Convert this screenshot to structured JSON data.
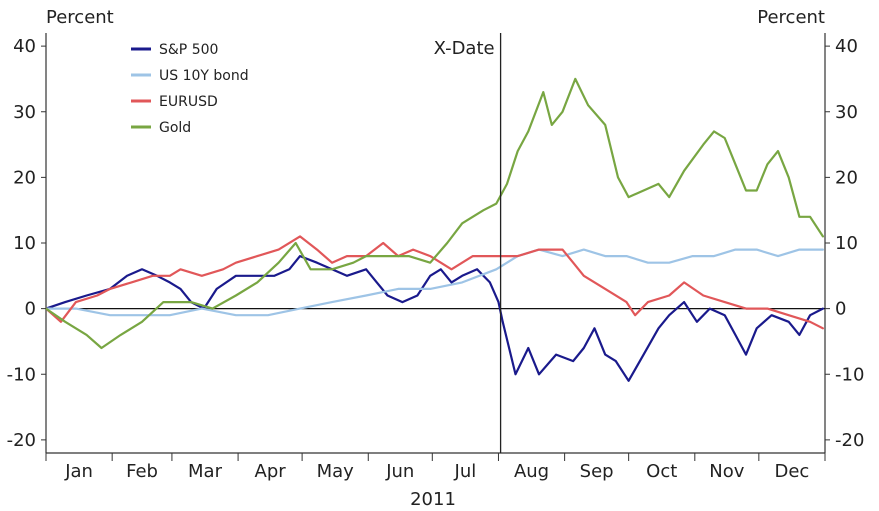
{
  "chart_data": {
    "type": "line",
    "ylabel_left": "Percent",
    "ylabel_right": "Percent",
    "ylim": [
      -22,
      42
    ],
    "yticks": [
      -20,
      -10,
      0,
      10,
      20,
      30,
      40
    ],
    "ytick_labels": [
      "-20",
      "-10",
      "0",
      "10",
      "20",
      "30",
      "40"
    ],
    "x_range": [
      "2011-01-01",
      "2011-12-31"
    ],
    "months": [
      "Jan",
      "Feb",
      "Mar",
      "Apr",
      "May",
      "Jun",
      "Jul",
      "Aug",
      "Sep",
      "Oct",
      "Nov",
      "Dec"
    ],
    "period_label": "2011",
    "annotation": {
      "text": "X-Date",
      "x": "2011-08-02"
    },
    "legend_position": "top-left",
    "grid": false,
    "series": [
      {
        "name": "S&P 500",
        "color": "#1a1a8c",
        "points": [
          [
            "2011-01-01",
            0
          ],
          [
            "2011-01-10",
            1
          ],
          [
            "2011-01-20",
            2
          ],
          [
            "2011-01-31",
            3
          ],
          [
            "2011-02-08",
            5
          ],
          [
            "2011-02-15",
            6
          ],
          [
            "2011-02-22",
            5
          ],
          [
            "2011-02-28",
            4
          ],
          [
            "2011-03-05",
            3
          ],
          [
            "2011-03-10",
            1
          ],
          [
            "2011-03-16",
            0
          ],
          [
            "2011-03-22",
            3
          ],
          [
            "2011-03-31",
            5
          ],
          [
            "2011-04-10",
            5
          ],
          [
            "2011-04-18",
            5
          ],
          [
            "2011-04-25",
            6
          ],
          [
            "2011-04-30",
            8
          ],
          [
            "2011-05-08",
            7
          ],
          [
            "2011-05-15",
            6
          ],
          [
            "2011-05-22",
            5
          ],
          [
            "2011-05-31",
            6
          ],
          [
            "2011-06-05",
            4
          ],
          [
            "2011-06-10",
            2
          ],
          [
            "2011-06-17",
            1
          ],
          [
            "2011-06-24",
            2
          ],
          [
            "2011-06-30",
            5
          ],
          [
            "2011-07-05",
            6
          ],
          [
            "2011-07-10",
            4
          ],
          [
            "2011-07-15",
            5
          ],
          [
            "2011-07-22",
            6
          ],
          [
            "2011-07-28",
            4
          ],
          [
            "2011-08-01",
            1
          ],
          [
            "2011-08-03",
            -2
          ],
          [
            "2011-08-06",
            -6
          ],
          [
            "2011-08-09",
            -10
          ],
          [
            "2011-08-15",
            -6
          ],
          [
            "2011-08-20",
            -10
          ],
          [
            "2011-08-28",
            -7
          ],
          [
            "2011-09-05",
            -8
          ],
          [
            "2011-09-10",
            -6
          ],
          [
            "2011-09-15",
            -3
          ],
          [
            "2011-09-20",
            -7
          ],
          [
            "2011-09-25",
            -8
          ],
          [
            "2011-10-01",
            -11
          ],
          [
            "2011-10-08",
            -7
          ],
          [
            "2011-10-15",
            -3
          ],
          [
            "2011-10-20",
            -1
          ],
          [
            "2011-10-27",
            1
          ],
          [
            "2011-11-02",
            -2
          ],
          [
            "2011-11-08",
            0
          ],
          [
            "2011-11-15",
            -1
          ],
          [
            "2011-11-20",
            -4
          ],
          [
            "2011-11-25",
            -7
          ],
          [
            "2011-11-30",
            -3
          ],
          [
            "2011-12-07",
            -1
          ],
          [
            "2011-12-15",
            -2
          ],
          [
            "2011-12-20",
            -4
          ],
          [
            "2011-12-25",
            -1
          ],
          [
            "2011-12-31",
            0
          ]
        ]
      },
      {
        "name": "US 10Y bond",
        "color": "#9ec4e6",
        "points": [
          [
            "2011-01-01",
            0
          ],
          [
            "2011-01-15",
            0
          ],
          [
            "2011-01-31",
            -1
          ],
          [
            "2011-02-15",
            -1
          ],
          [
            "2011-02-28",
            -1
          ],
          [
            "2011-03-15",
            0
          ],
          [
            "2011-03-31",
            -1
          ],
          [
            "2011-04-15",
            -1
          ],
          [
            "2011-04-30",
            0
          ],
          [
            "2011-05-15",
            1
          ],
          [
            "2011-05-31",
            2
          ],
          [
            "2011-06-15",
            3
          ],
          [
            "2011-06-30",
            3
          ],
          [
            "2011-07-15",
            4
          ],
          [
            "2011-07-31",
            6
          ],
          [
            "2011-08-10",
            8
          ],
          [
            "2011-08-20",
            9
          ],
          [
            "2011-08-31",
            8
          ],
          [
            "2011-09-10",
            9
          ],
          [
            "2011-09-20",
            8
          ],
          [
            "2011-09-30",
            8
          ],
          [
            "2011-10-10",
            7
          ],
          [
            "2011-10-20",
            7
          ],
          [
            "2011-10-31",
            8
          ],
          [
            "2011-11-10",
            8
          ],
          [
            "2011-11-20",
            9
          ],
          [
            "2011-11-30",
            9
          ],
          [
            "2011-12-10",
            8
          ],
          [
            "2011-12-20",
            9
          ],
          [
            "2011-12-31",
            9
          ]
        ]
      },
      {
        "name": "EURUSD",
        "color": "#e15759",
        "points": [
          [
            "2011-01-01",
            0
          ],
          [
            "2011-01-08",
            -2
          ],
          [
            "2011-01-15",
            1
          ],
          [
            "2011-01-25",
            2
          ],
          [
            "2011-01-31",
            3
          ],
          [
            "2011-02-10",
            4
          ],
          [
            "2011-02-20",
            5
          ],
          [
            "2011-02-28",
            5
          ],
          [
            "2011-03-05",
            6
          ],
          [
            "2011-03-15",
            5
          ],
          [
            "2011-03-25",
            6
          ],
          [
            "2011-03-31",
            7
          ],
          [
            "2011-04-10",
            8
          ],
          [
            "2011-04-20",
            9
          ],
          [
            "2011-04-30",
            11
          ],
          [
            "2011-05-08",
            9
          ],
          [
            "2011-05-15",
            7
          ],
          [
            "2011-05-22",
            8
          ],
          [
            "2011-05-31",
            8
          ],
          [
            "2011-06-08",
            10
          ],
          [
            "2011-06-15",
            8
          ],
          [
            "2011-06-22",
            9
          ],
          [
            "2011-06-30",
            8
          ],
          [
            "2011-07-10",
            6
          ],
          [
            "2011-07-20",
            8
          ],
          [
            "2011-07-31",
            8
          ],
          [
            "2011-08-10",
            8
          ],
          [
            "2011-08-20",
            9
          ],
          [
            "2011-08-31",
            9
          ],
          [
            "2011-09-05",
            7
          ],
          [
            "2011-09-10",
            5
          ],
          [
            "2011-09-20",
            3
          ],
          [
            "2011-09-30",
            1
          ],
          [
            "2011-10-04",
            -1
          ],
          [
            "2011-10-10",
            1
          ],
          [
            "2011-10-20",
            2
          ],
          [
            "2011-10-27",
            4
          ],
          [
            "2011-11-05",
            2
          ],
          [
            "2011-11-15",
            1
          ],
          [
            "2011-11-25",
            0
          ],
          [
            "2011-12-05",
            0
          ],
          [
            "2011-12-15",
            -1
          ],
          [
            "2011-12-25",
            -2
          ],
          [
            "2011-12-31",
            -3
          ]
        ]
      },
      {
        "name": "Gold",
        "color": "#78a642",
        "points": [
          [
            "2011-01-01",
            0
          ],
          [
            "2011-01-10",
            -2
          ],
          [
            "2011-01-20",
            -4
          ],
          [
            "2011-01-27",
            -6
          ],
          [
            "2011-02-05",
            -4
          ],
          [
            "2011-02-15",
            -2
          ],
          [
            "2011-02-25",
            1
          ],
          [
            "2011-03-10",
            1
          ],
          [
            "2011-03-20",
            0
          ],
          [
            "2011-03-31",
            2
          ],
          [
            "2011-04-10",
            4
          ],
          [
            "2011-04-20",
            7
          ],
          [
            "2011-04-28",
            10
          ],
          [
            "2011-05-05",
            6
          ],
          [
            "2011-05-15",
            6
          ],
          [
            "2011-05-25",
            7
          ],
          [
            "2011-05-31",
            8
          ],
          [
            "2011-06-10",
            8
          ],
          [
            "2011-06-20",
            8
          ],
          [
            "2011-06-30",
            7
          ],
          [
            "2011-07-08",
            10
          ],
          [
            "2011-07-15",
            13
          ],
          [
            "2011-07-25",
            15
          ],
          [
            "2011-07-31",
            16
          ],
          [
            "2011-08-05",
            19
          ],
          [
            "2011-08-10",
            24
          ],
          [
            "2011-08-15",
            27
          ],
          [
            "2011-08-22",
            33
          ],
          [
            "2011-08-26",
            28
          ],
          [
            "2011-08-31",
            30
          ],
          [
            "2011-09-06",
            35
          ],
          [
            "2011-09-12",
            31
          ],
          [
            "2011-09-20",
            28
          ],
          [
            "2011-09-26",
            20
          ],
          [
            "2011-10-01",
            17
          ],
          [
            "2011-10-08",
            18
          ],
          [
            "2011-10-15",
            19
          ],
          [
            "2011-10-20",
            17
          ],
          [
            "2011-10-27",
            21
          ],
          [
            "2011-11-05",
            25
          ],
          [
            "2011-11-10",
            27
          ],
          [
            "2011-11-15",
            26
          ],
          [
            "2011-11-20",
            22
          ],
          [
            "2011-11-25",
            18
          ],
          [
            "2011-11-30",
            18
          ],
          [
            "2011-12-05",
            22
          ],
          [
            "2011-12-10",
            24
          ],
          [
            "2011-12-15",
            20
          ],
          [
            "2011-12-20",
            14
          ],
          [
            "2011-12-25",
            14
          ],
          [
            "2011-12-31",
            11
          ]
        ]
      }
    ]
  }
}
